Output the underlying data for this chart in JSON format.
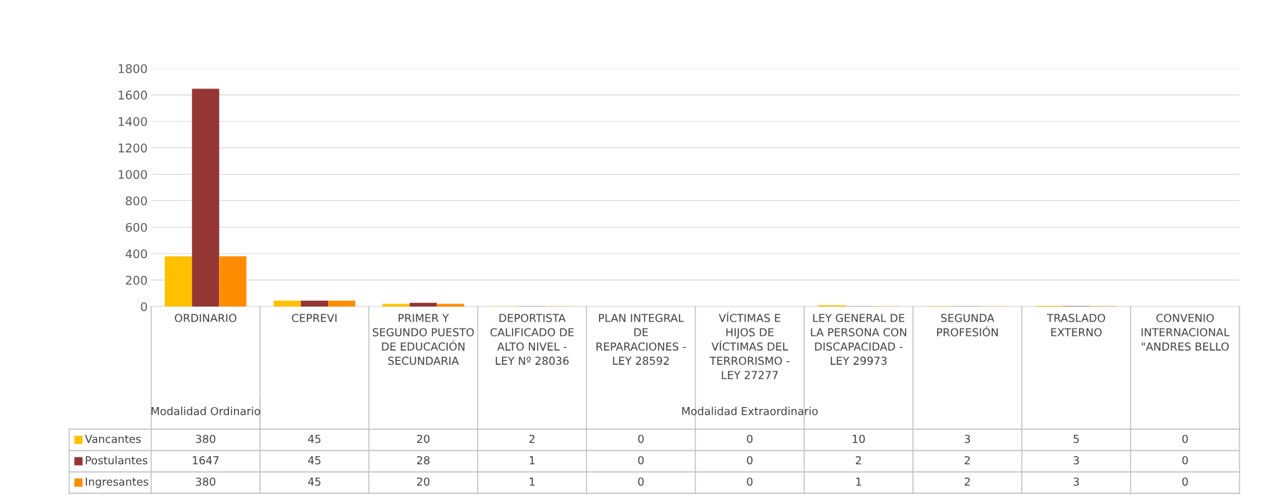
{
  "chart_data": {
    "type": "bar",
    "categories": [
      "ORDINARIO",
      "CEPREVI",
      "PRIMER Y SEGUNDO PUESTO DE EDUCACIÓN SECUNDARIA",
      "DEPORTISTA CALIFICADO DE ALTO NIVEL - LEY Nº 28036",
      "PLAN INTEGRAL DE REPARACIONES - LEY 28592",
      "VÍCTIMAS E HIJOS DE VÍCTIMAS DEL TERRORISMO - LEY 27277",
      "LEY GENERAL DE LA PERSONA CON DISCAPACIDAD - LEY 29973",
      "SEGUNDA PROFESIÓN",
      "TRASLADO EXTERNO",
      "CONVENIO INTERNACIONAL \"ANDRES BELLO"
    ],
    "series": [
      {
        "name": "Vancantes",
        "color": "#ffc000",
        "values": [
          380,
          45,
          20,
          2,
          0,
          0,
          10,
          3,
          5,
          0
        ]
      },
      {
        "name": "Postulantes",
        "color": "#943634",
        "values": [
          1647,
          45,
          28,
          1,
          0,
          0,
          2,
          2,
          3,
          0
        ]
      },
      {
        "name": "Ingresantes",
        "color": "#ff8c00",
        "values": [
          380,
          45,
          20,
          1,
          0,
          0,
          1,
          2,
          3,
          0
        ]
      }
    ],
    "annotations": [
      "Modalidad Ordinario",
      "Modalidad Extraordinario"
    ],
    "ylim": [
      0,
      1800
    ],
    "yticks": [
      0,
      200,
      400,
      600,
      800,
      1000,
      1200,
      1400,
      1600,
      1800
    ],
    "grid": "y",
    "legend": "bottom",
    "data_labels": true
  }
}
